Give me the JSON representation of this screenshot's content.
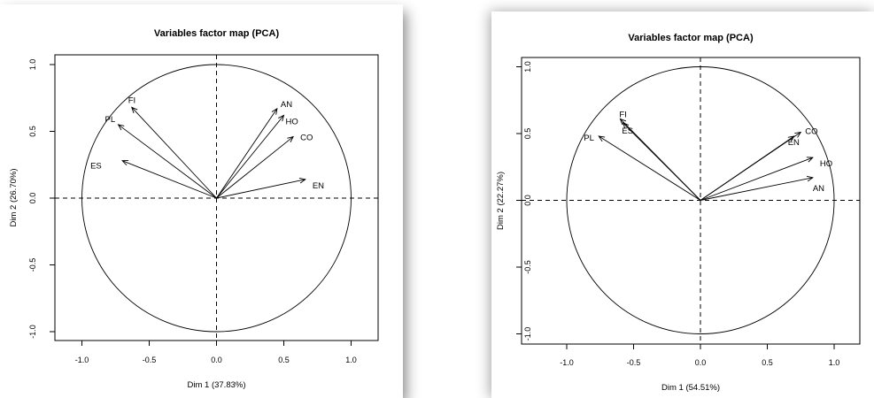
{
  "chart_data": [
    {
      "type": "scatter",
      "chart_kind": "PCA variables factor map (correlation circle)",
      "title": "Variables factor map (PCA)",
      "xlabel": "Dim 1 (37.83%)",
      "ylabel": "Dim 2 (26.70%)",
      "xlim": [
        -1.2,
        1.2
      ],
      "ylim": [
        -1.05,
        1.05
      ],
      "xticks": [
        "-1.0",
        "-0.5",
        "0.0",
        "0.5",
        "1.0"
      ],
      "yticks": [
        "-1.0",
        "-0.5",
        "0.0",
        "0.5",
        "1.0"
      ],
      "unit_circle": true,
      "dashed_zero_lines": true,
      "vectors": [
        {
          "name": "AN",
          "x": 0.45,
          "y": 0.67
        },
        {
          "name": "HO",
          "x": 0.5,
          "y": 0.62
        },
        {
          "name": "CO",
          "x": 0.57,
          "y": 0.46
        },
        {
          "name": "EN",
          "x": 0.66,
          "y": 0.14
        },
        {
          "name": "FI",
          "x": -0.63,
          "y": 0.68
        },
        {
          "name": "PL",
          "x": -0.73,
          "y": 0.55
        },
        {
          "name": "ES",
          "x": -0.7,
          "y": 0.28
        }
      ]
    },
    {
      "type": "scatter",
      "chart_kind": "PCA variables factor map (correlation circle)",
      "title": "Variables factor map (PCA)",
      "xlabel": "Dim 1 (54.51%)",
      "ylabel": "Dim 2 (22.27%)",
      "xlim": [
        -1.2,
        1.2
      ],
      "ylim": [
        -1.05,
        1.05
      ],
      "xticks": [
        "-1.0",
        "-0.5",
        "0.0",
        "0.5",
        "1.0"
      ],
      "yticks": [
        "-1.0",
        "-0.5",
        "0.0",
        "0.5",
        "1.0"
      ],
      "unit_circle": true,
      "dashed_zero_lines": true,
      "vectors": [
        {
          "name": "FI",
          "x": -0.6,
          "y": 0.61
        },
        {
          "name": "ES",
          "x": -0.58,
          "y": 0.58
        },
        {
          "name": "PL",
          "x": -0.76,
          "y": 0.48
        },
        {
          "name": "EN",
          "x": 0.7,
          "y": 0.48
        },
        {
          "name": "CO",
          "x": 0.75,
          "y": 0.51
        },
        {
          "name": "HO",
          "x": 0.84,
          "y": 0.32
        },
        {
          "name": "AN",
          "x": 0.84,
          "y": 0.17
        }
      ]
    }
  ]
}
